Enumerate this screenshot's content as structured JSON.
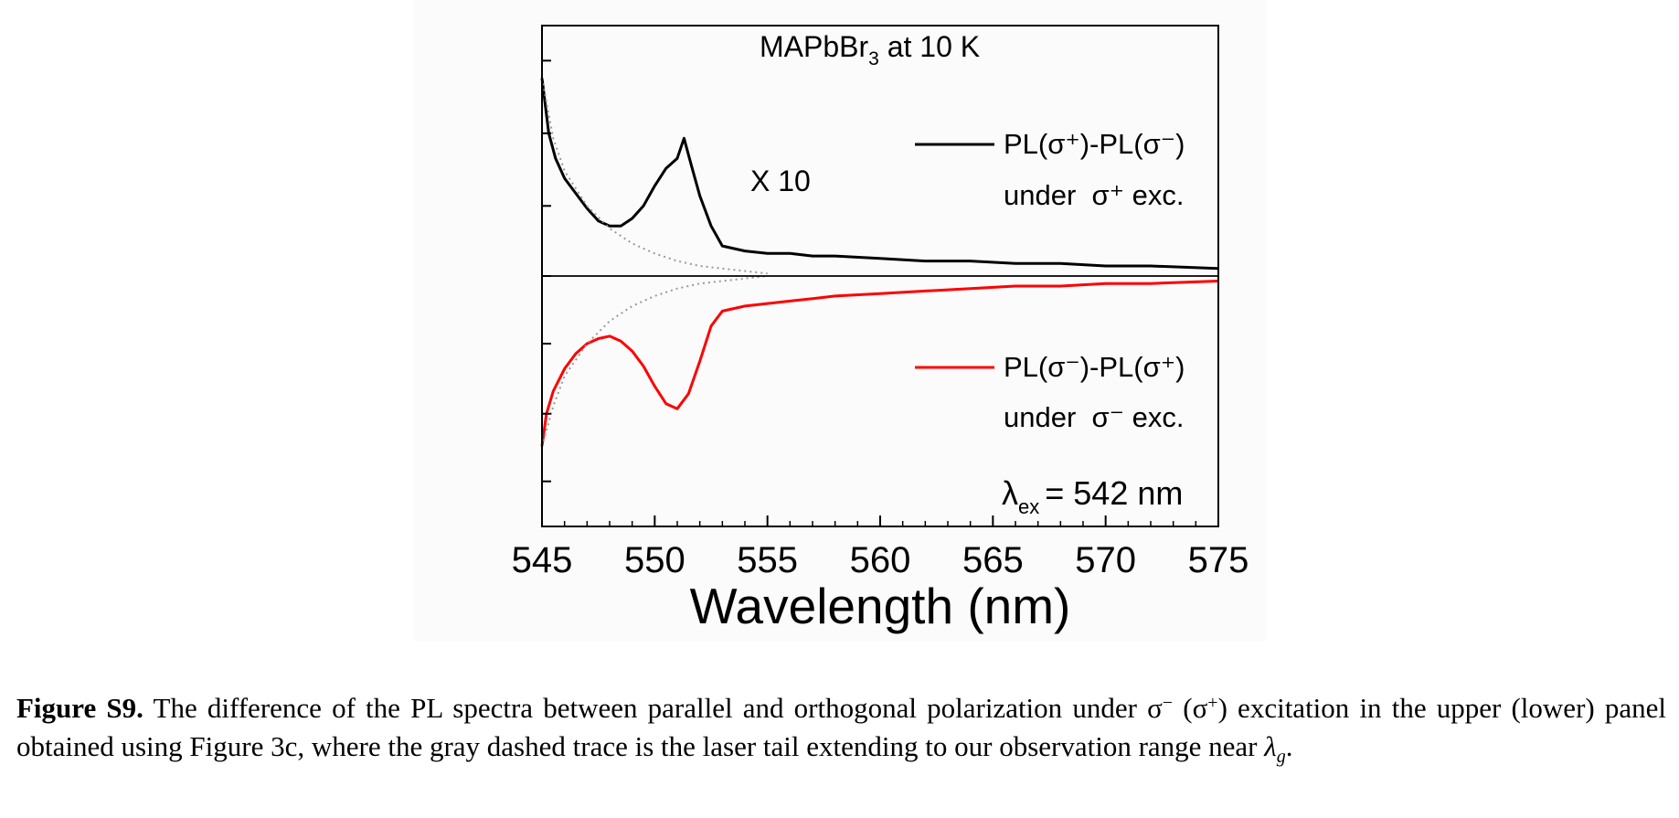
{
  "chart_data": {
    "type": "line",
    "title": "MAPbBr",
    "title_subscript": "3",
    "title_suffix": " at 10 K",
    "xlabel": "Wavelength (nm)",
    "ylabel": "",
    "xlim": [
      545,
      575
    ],
    "ylim": [
      -1.0,
      1.0
    ],
    "x_ticks": [
      545,
      550,
      555,
      560,
      565,
      570,
      575
    ],
    "grid": false,
    "annotations": {
      "scale_note": "X 10",
      "excitation_symbol": "λ",
      "excitation_subscript": "ex",
      "excitation_value": "= 542 nm"
    },
    "legend": [
      {
        "line1": "PL(σ⁺)-PL(σ⁻)",
        "line2": "under  σ⁺ exc.",
        "color": "#000000"
      },
      {
        "line1": "PL(σ⁻)-PL(σ⁺)",
        "line2": "under  σ⁻ exc.",
        "color": "#ff0000"
      }
    ],
    "legend_placement": "right",
    "series": [
      {
        "color": "#000000",
        "x": [
          545.0,
          545.3,
          545.6,
          546.0,
          546.5,
          547.0,
          547.5,
          548.0,
          548.5,
          549.0,
          549.5,
          550.0,
          550.5,
          551.0,
          551.3,
          551.6,
          552.0,
          552.5,
          553.0,
          554.0,
          555.0,
          556.0,
          557.0,
          558.0,
          560.0,
          562.0,
          564.0,
          566.0,
          568.0,
          570.0,
          572.0,
          575.0
        ],
        "y": [
          0.79,
          0.57,
          0.47,
          0.39,
          0.33,
          0.27,
          0.22,
          0.2,
          0.2,
          0.23,
          0.28,
          0.36,
          0.43,
          0.47,
          0.55,
          0.45,
          0.32,
          0.2,
          0.12,
          0.1,
          0.09,
          0.09,
          0.08,
          0.08,
          0.07,
          0.06,
          0.06,
          0.05,
          0.05,
          0.04,
          0.04,
          0.03
        ]
      },
      {
        "color": "#ff0000",
        "x": [
          545.0,
          545.2,
          545.5,
          546.0,
          546.5,
          547.0,
          547.5,
          548.0,
          548.5,
          549.0,
          549.5,
          550.0,
          550.5,
          551.0,
          551.5,
          552.0,
          552.5,
          553.0,
          553.5,
          554.0,
          555.0,
          556.0,
          557.0,
          558.0,
          560.0,
          562.0,
          564.0,
          566.0,
          568.0,
          570.0,
          572.0,
          575.0
        ],
        "y": [
          -0.68,
          -0.55,
          -0.46,
          -0.37,
          -0.31,
          -0.27,
          -0.25,
          -0.24,
          -0.26,
          -0.3,
          -0.36,
          -0.44,
          -0.51,
          -0.53,
          -0.47,
          -0.34,
          -0.2,
          -0.14,
          -0.13,
          -0.12,
          -0.11,
          -0.1,
          -0.09,
          -0.08,
          -0.07,
          -0.06,
          -0.05,
          -0.04,
          -0.04,
          -0.03,
          -0.03,
          -0.02
        ]
      },
      {
        "color": "#999999",
        "style": "dotted",
        "x": [
          545.0,
          545.5,
          546.0,
          547.0,
          548.0,
          549.0,
          550.0,
          551.0,
          552.0,
          553.0,
          554.0,
          555.0
        ],
        "y": [
          0.79,
          0.55,
          0.42,
          0.28,
          0.19,
          0.13,
          0.09,
          0.06,
          0.04,
          0.03,
          0.02,
          0.01
        ]
      },
      {
        "color": "#999999",
        "style": "dotted",
        "x": [
          545.0,
          545.5,
          546.0,
          547.0,
          548.0,
          549.0,
          550.0,
          551.0,
          552.0,
          553.0,
          554.0,
          555.0
        ],
        "y": [
          -0.68,
          -0.52,
          -0.4,
          -0.27,
          -0.18,
          -0.12,
          -0.08,
          -0.05,
          -0.03,
          -0.02,
          -0.01,
          0.0
        ]
      }
    ]
  },
  "caption": {
    "label": "Figure S9.",
    "text_a": " The difference of the PL spectra between parallel and orthogonal polarization under ",
    "sym1": "σ",
    "sym1_sup": "−",
    "sym2_open": "(σ",
    "sym2_sup": "+",
    "text_b": ") excitation in the upper (lower) panel obtained using Figure 3c, where the gray dashed trace is the laser tail extending to our observation range near ",
    "lambda": "λ",
    "lambda_sub": "g",
    "text_end": "."
  }
}
